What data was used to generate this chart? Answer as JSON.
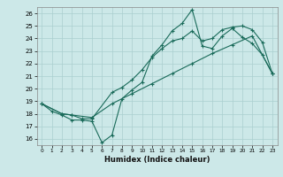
{
  "xlabel": "Humidex (Indice chaleur)",
  "ylabel": "",
  "bg_color": "#cce8e8",
  "grid_color": "#aacfcf",
  "line_color": "#1a6b5a",
  "xlim": [
    -0.5,
    23.5
  ],
  "ylim": [
    15.5,
    26.5
  ],
  "xticks": [
    0,
    1,
    2,
    3,
    4,
    5,
    6,
    7,
    8,
    9,
    10,
    11,
    12,
    13,
    14,
    15,
    16,
    17,
    18,
    19,
    20,
    21,
    22,
    23
  ],
  "yticks": [
    16,
    17,
    18,
    19,
    20,
    21,
    22,
    23,
    24,
    25,
    26
  ],
  "line1_x": [
    0,
    1,
    2,
    3,
    4,
    5,
    6,
    7,
    8,
    9,
    10,
    11,
    12,
    13,
    14,
    15,
    16,
    17,
    18,
    19,
    20,
    21,
    22,
    23
  ],
  "line1_y": [
    18.8,
    18.2,
    17.9,
    17.5,
    17.5,
    17.4,
    15.7,
    16.3,
    19.2,
    19.9,
    20.5,
    22.6,
    23.5,
    24.6,
    25.2,
    26.3,
    23.4,
    23.2,
    24.2,
    24.8,
    24.1,
    23.6,
    22.7,
    21.2
  ],
  "line2_x": [
    0,
    2,
    3,
    4,
    5,
    7,
    8,
    9,
    10,
    11,
    12,
    13,
    14,
    15,
    16,
    17,
    18,
    19,
    20,
    21,
    22,
    23
  ],
  "line2_y": [
    18.8,
    18.0,
    17.9,
    17.6,
    17.6,
    19.7,
    20.1,
    20.7,
    21.5,
    22.5,
    23.2,
    23.8,
    24.0,
    24.6,
    23.8,
    24.0,
    24.7,
    24.9,
    25.0,
    24.7,
    23.7,
    21.2
  ],
  "line3_x": [
    0,
    2,
    3,
    5,
    7,
    9,
    11,
    13,
    15,
    17,
    19,
    21,
    23
  ],
  "line3_y": [
    18.8,
    18.0,
    17.9,
    17.7,
    18.8,
    19.6,
    20.4,
    21.2,
    22.0,
    22.8,
    23.5,
    24.2,
    21.2
  ]
}
